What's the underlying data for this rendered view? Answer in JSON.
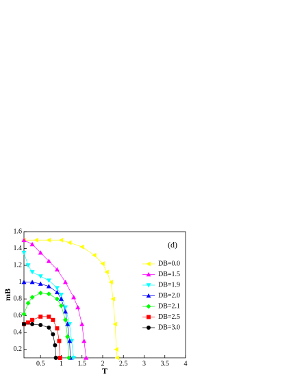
{
  "chart_data": {
    "type": "line",
    "annotation": "(d)",
    "xlabel": "T",
    "ylabel": "mB",
    "xlim": [
      0.1,
      4
    ],
    "ylim": [
      0.1,
      1.6
    ],
    "xticks": [
      0.5,
      1,
      1.5,
      2,
      2.5,
      3,
      3.5,
      4
    ],
    "yticks": [
      0.2,
      0.4,
      0.6,
      0.8,
      1,
      1.2,
      1.4,
      1.6
    ],
    "series": [
      {
        "name": "DB=0.0",
        "color": "#ffff00",
        "marker": "left",
        "x": [
          0.1,
          0.4,
          0.7,
          1.0,
          1.2,
          1.5,
          1.8,
          2.0,
          2.1,
          2.2,
          2.25,
          2.3,
          2.33,
          2.35
        ],
        "values": [
          1.5,
          1.5,
          1.5,
          1.5,
          1.47,
          1.42,
          1.32,
          1.22,
          1.12,
          1.0,
          0.8,
          0.5,
          0.2,
          0.1
        ]
      },
      {
        "name": "DB=1.5",
        "color": "#ff00ff",
        "marker": "up",
        "x": [
          0.1,
          0.3,
          0.5,
          0.7,
          0.9,
          1.1,
          1.3,
          1.4,
          1.5,
          1.55,
          1.6
        ],
        "values": [
          1.5,
          1.45,
          1.35,
          1.25,
          1.15,
          1.0,
          0.82,
          0.7,
          0.5,
          0.3,
          0.1
        ]
      },
      {
        "name": "DB=1.9",
        "color": "#00ffff",
        "marker": "down",
        "x": [
          0.1,
          0.2,
          0.3,
          0.5,
          0.7,
          0.9,
          1.0,
          1.1,
          1.2,
          1.25,
          1.3
        ],
        "values": [
          1.35,
          1.2,
          1.12,
          1.07,
          1.02,
          0.93,
          0.85,
          0.7,
          0.5,
          0.3,
          0.1
        ]
      },
      {
        "name": "DB=2.0",
        "color": "#0000ff",
        "marker": "up",
        "x": [
          0.1,
          0.3,
          0.5,
          0.7,
          0.9,
          1.0,
          1.1,
          1.15,
          1.2,
          1.22
        ],
        "values": [
          1.0,
          1.0,
          0.98,
          0.95,
          0.88,
          0.8,
          0.65,
          0.5,
          0.3,
          0.1
        ]
      },
      {
        "name": "DB=2.1",
        "color": "#00ff00",
        "marker": "diamond",
        "x": [
          0.1,
          0.2,
          0.3,
          0.5,
          0.7,
          0.9,
          1.0,
          1.1,
          1.15,
          1.18
        ],
        "values": [
          0.62,
          0.75,
          0.82,
          0.87,
          0.86,
          0.8,
          0.72,
          0.55,
          0.35,
          0.1
        ]
      },
      {
        "name": "DB=2.5",
        "color": "#ff0000",
        "marker": "square",
        "x": [
          0.1,
          0.2,
          0.3,
          0.5,
          0.7,
          0.8,
          0.9,
          0.95,
          0.97
        ],
        "values": [
          0.5,
          0.52,
          0.55,
          0.59,
          0.59,
          0.55,
          0.45,
          0.3,
          0.1
        ]
      },
      {
        "name": "DB=3.0",
        "color": "#000000",
        "marker": "circle",
        "x": [
          0.1,
          0.3,
          0.5,
          0.7,
          0.8,
          0.85,
          0.87
        ],
        "values": [
          0.5,
          0.5,
          0.49,
          0.46,
          0.38,
          0.25,
          0.1
        ]
      }
    ]
  }
}
